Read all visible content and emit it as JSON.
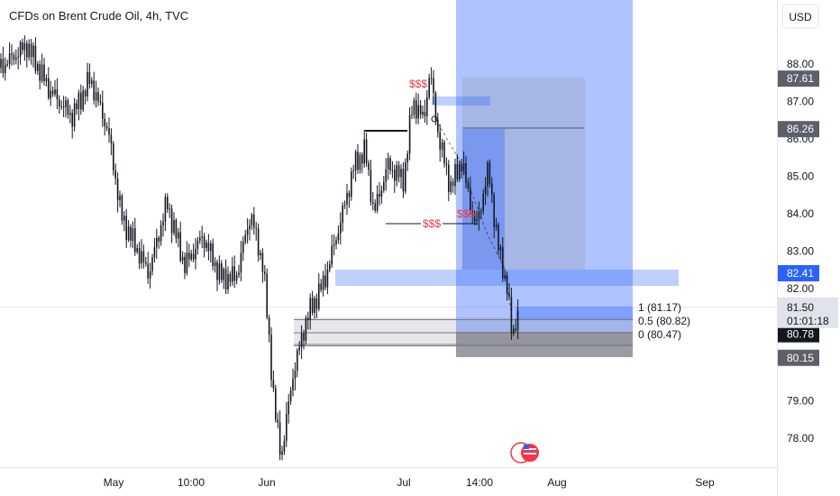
{
  "header": {
    "title": "CFDs on Brent Crude Oil, 4h, TVC"
  },
  "axis": {
    "currency": "USD"
  },
  "chart_data": {
    "type": "candlestick",
    "title": "CFDs on Brent Crude Oil, 4h, TVC",
    "ylim": [
      77.2,
      89.7
    ],
    "x_ticks": [
      "May",
      "10:00",
      "Jun",
      "Jul",
      "14:00",
      "Aug",
      "Sep"
    ],
    "y_ticks": [
      "88.00",
      "87.00",
      "86.00",
      "85.00",
      "84.00",
      "83.00",
      "82.00",
      "79.00",
      "78.00"
    ],
    "y_tick_values": [
      88,
      87,
      86,
      85,
      84,
      83,
      82,
      79,
      78
    ],
    "price_tags": [
      {
        "label": "87.61",
        "value": 87.61,
        "bg": "#5d606b",
        "fg": "#ffffff"
      },
      {
        "label": "86.26",
        "value": 86.26,
        "bg": "#5d606b",
        "fg": "#ffffff"
      },
      {
        "label": "82.41",
        "value": 82.41,
        "bg": "#2962ff",
        "fg": "#ffffff"
      },
      {
        "label": "80.78",
        "value": 80.78,
        "bg": "#131722",
        "fg": "#ffffff"
      },
      {
        "label": "80.15",
        "value": 80.15,
        "bg": "#5d606b",
        "fg": "#ffffff"
      }
    ],
    "last_price": {
      "price": "81.50",
      "countdown": "01:01:18",
      "value": 81.5
    },
    "fib_levels": [
      {
        "label": "1 (81.17)",
        "value": 81.17
      },
      {
        "label": "0.5 (80.82)",
        "value": 80.82
      },
      {
        "label": "0 (80.47)",
        "value": 80.47
      }
    ],
    "annotations": [
      "$$$",
      "$$$",
      "$$$"
    ],
    "colors": {
      "candle": "#131722",
      "zone": "#2962ff",
      "annotation": "#f23645",
      "grid": "#f0f3fa"
    }
  }
}
